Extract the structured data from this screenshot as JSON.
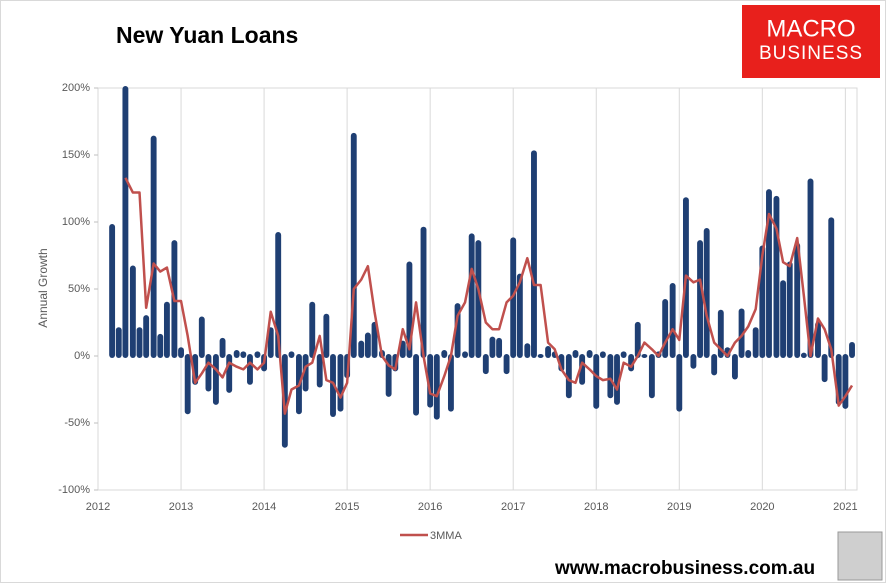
{
  "chart_data": {
    "type": "bar",
    "title": "New Yuan Loans",
    "y_label": "Annual Growth",
    "x": [
      2012.17,
      2012.25,
      2012.33,
      2012.42,
      2012.5,
      2012.58,
      2012.67,
      2012.75,
      2012.83,
      2012.92,
      2013,
      2013.08,
      2013.17,
      2013.25,
      2013.33,
      2013.42,
      2013.5,
      2013.58,
      2013.67,
      2013.75,
      2013.83,
      2013.92,
      2014,
      2014.08,
      2014.17,
      2014.25,
      2014.33,
      2014.42,
      2014.5,
      2014.58,
      2014.67,
      2014.75,
      2014.83,
      2014.92,
      2015,
      2015.08,
      2015.17,
      2015.25,
      2015.33,
      2015.42,
      2015.5,
      2015.58,
      2015.67,
      2015.75,
      2015.83,
      2015.92,
      2016,
      2016.08,
      2016.17,
      2016.25,
      2016.33,
      2016.42,
      2016.5,
      2016.58,
      2016.67,
      2016.75,
      2016.83,
      2016.92,
      2017,
      2017.08,
      2017.17,
      2017.25,
      2017.33,
      2017.42,
      2017.5,
      2017.58,
      2017.67,
      2017.75,
      2017.83,
      2017.92,
      2018,
      2018.08,
      2018.17,
      2018.25,
      2018.33,
      2018.42,
      2018.5,
      2018.58,
      2018.67,
      2018.75,
      2018.83,
      2018.92,
      2019,
      2019.08,
      2019.17,
      2019.25,
      2019.33,
      2019.42,
      2019.5,
      2019.58,
      2019.67,
      2019.75,
      2019.83,
      2019.92,
      2020,
      2020.08,
      2020.17,
      2020.25,
      2020.33,
      2020.42,
      2020.5,
      2020.58,
      2020.67,
      2020.75,
      2020.83,
      2020.92,
      2021,
      2021.08
    ],
    "series": [
      {
        "type": "bar",
        "color": "#1f3f73",
        "values": [
          97,
          20,
          200,
          66,
          20,
          29,
          163,
          15,
          39,
          85,
          5,
          -42,
          -20,
          28,
          -25,
          -35,
          12,
          -26,
          3,
          2,
          -20,
          2,
          -10,
          20,
          91,
          -67,
          2,
          -42,
          -25,
          39,
          -22,
          30,
          -44,
          -40,
          -15,
          165,
          10,
          16,
          24,
          3,
          -29,
          -10,
          10,
          69,
          -43,
          95,
          -37,
          -46,
          3,
          -40,
          38,
          2,
          90,
          85,
          -12,
          13,
          12,
          -12,
          87,
          60,
          8,
          152,
          0,
          6,
          2,
          -10,
          -30,
          3,
          -20,
          3,
          -38,
          2,
          -30,
          -35,
          2,
          -10,
          24,
          0,
          -30,
          2,
          41,
          53,
          -40,
          117,
          -8,
          85,
          94,
          -13,
          33,
          5,
          -16,
          34,
          3,
          20,
          81,
          123,
          118,
          55,
          69,
          83,
          1,
          131,
          24,
          -18,
          102,
          -35,
          -38,
          9
        ]
      },
      {
        "type": "line",
        "name": "3MMA",
        "color": "#c0504d",
        "values": [
          null,
          null,
          133,
          122,
          122,
          36,
          69,
          63,
          66,
          41,
          41,
          15,
          -20,
          -13,
          -5,
          -10,
          -16,
          -5,
          -8,
          -10,
          -5,
          -10,
          -5,
          33,
          15,
          -43,
          -25,
          -22,
          -8,
          -5,
          15,
          -18,
          -20,
          -31,
          -20,
          50,
          57,
          67,
          33,
          0,
          -7,
          -10,
          20,
          5,
          40,
          0,
          -28,
          -30,
          -15,
          0,
          30,
          40,
          65,
          50,
          25,
          20,
          20,
          40,
          45,
          55,
          73,
          53,
          53,
          10,
          5,
          -10,
          -18,
          -20,
          -5,
          -10,
          -15,
          -18,
          -17,
          -25,
          -5,
          -8,
          0,
          10,
          5,
          0,
          10,
          20,
          12,
          60,
          55,
          57,
          30,
          10,
          5,
          0,
          10,
          15,
          22,
          35,
          75,
          106,
          95,
          70,
          67,
          88,
          45,
          0,
          28,
          20,
          5,
          -37,
          -30,
          -22
        ]
      }
    ],
    "xlim": [
      2012,
      2021.14
    ],
    "xticks": [
      2012,
      2013,
      2014,
      2015,
      2016,
      2017,
      2018,
      2019,
      2020,
      2021
    ],
    "ylim": [
      -100,
      200
    ],
    "yticks": [
      {
        "value": -100,
        "label": "-100%"
      },
      {
        "value": -50,
        "label": "-50%"
      },
      {
        "value": 0,
        "label": "0%"
      },
      {
        "value": 50,
        "label": "50%"
      },
      {
        "value": 100,
        "label": "100%"
      },
      {
        "value": 150,
        "label": "150%"
      },
      {
        "value": 200,
        "label": "200%"
      }
    ],
    "grid": "x"
  },
  "logo": {
    "line1": "MACRO",
    "line2": "BUSINESS"
  },
  "footer": "www.macrobusiness.com.au"
}
